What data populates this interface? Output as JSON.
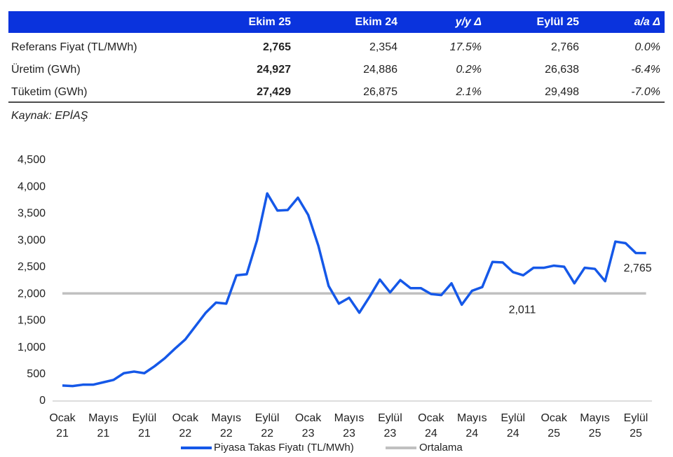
{
  "table": {
    "columns": [
      "Ekim 25",
      "Ekim 24",
      "y/y Δ",
      "Eylül 25",
      "a/a Δ"
    ],
    "rows": [
      {
        "label": "Referans Fiyat (TL/MWh)",
        "cells": [
          "2,765",
          "2,354",
          "17.5%",
          "2,766",
          "0.0%"
        ]
      },
      {
        "label": "Üretim (GWh)",
        "cells": [
          "24,927",
          "24,886",
          "0.2%",
          "26,638",
          "-6.4%"
        ]
      },
      {
        "label": "Tüketim (GWh)",
        "cells": [
          "27,429",
          "26,875",
          "2.1%",
          "29,498",
          "-7.0%"
        ]
      }
    ],
    "source": "Kaynak: EPİAŞ"
  },
  "chart_data": {
    "type": "line",
    "categories": [
      "Ocak 21",
      null,
      null,
      null,
      "Mayıs 21",
      null,
      null,
      null,
      "Eylül 21",
      null,
      null,
      null,
      "Ocak 22",
      null,
      null,
      null,
      "Mayıs 22",
      null,
      null,
      null,
      "Eylül 22",
      null,
      null,
      null,
      "Ocak 23",
      null,
      null,
      null,
      "Mayıs 23",
      null,
      null,
      null,
      "Eylül 23",
      null,
      null,
      null,
      "Ocak 24",
      null,
      null,
      null,
      "Mayıs 24",
      null,
      null,
      null,
      "Eylül 24",
      null,
      null,
      null,
      "Ocak 25",
      null,
      null,
      null,
      "Mayıs 25",
      null,
      null,
      null,
      "Eylül 25",
      null
    ],
    "series": [
      {
        "name": "Piyasa Takas Fiyatı (TL/MWh)",
        "color": "#1558e8",
        "values": [
          290,
          280,
          305,
          305,
          350,
          395,
          520,
          550,
          520,
          650,
          800,
          980,
          1150,
          1400,
          1650,
          1840,
          1820,
          2350,
          2370,
          3000,
          3880,
          3560,
          3570,
          3800,
          3480,
          2900,
          2150,
          1820,
          1930,
          1650,
          1950,
          2270,
          2030,
          2260,
          2110,
          2110,
          2000,
          1980,
          2200,
          1800,
          2060,
          2130,
          2600,
          2590,
          2410,
          2350,
          2490,
          2490,
          2530,
          2510,
          2200,
          2490,
          2470,
          2240,
          2980,
          2950,
          2766,
          2765
        ],
        "value_labels": [
          null,
          null,
          null,
          null,
          null,
          null,
          null,
          null,
          null,
          null,
          null,
          null,
          null,
          null,
          null,
          null,
          null,
          null,
          null,
          null,
          null,
          null,
          null,
          null,
          null,
          null,
          null,
          null,
          null,
          null,
          null,
          null,
          null,
          null,
          null,
          null,
          null,
          null,
          null,
          null,
          null,
          null,
          null,
          null,
          null,
          null,
          null,
          null,
          null,
          null,
          null,
          null,
          null,
          null,
          null,
          null,
          null,
          "2,765"
        ]
      }
    ],
    "average": {
      "name": "Ortalama",
      "value": 2011,
      "label": "2,011",
      "color": "#c0c0c0"
    },
    "ylim": [
      0,
      4500
    ],
    "yticks": [
      0,
      {
        "value": 500,
        "label": "500"
      },
      {
        "value": 1000,
        "label": "1,000"
      },
      {
        "value": 1500,
        "label": "1,500"
      },
      {
        "value": 2000,
        "label": "2,000"
      },
      {
        "value": 2500,
        "label": "2,500"
      },
      {
        "value": 3000,
        "label": "3,000"
      },
      {
        "value": 3500,
        "label": "3,500"
      },
      {
        "value": 4000,
        "label": "4,000"
      },
      {
        "value": 4500,
        "label": "4,500"
      }
    ]
  }
}
